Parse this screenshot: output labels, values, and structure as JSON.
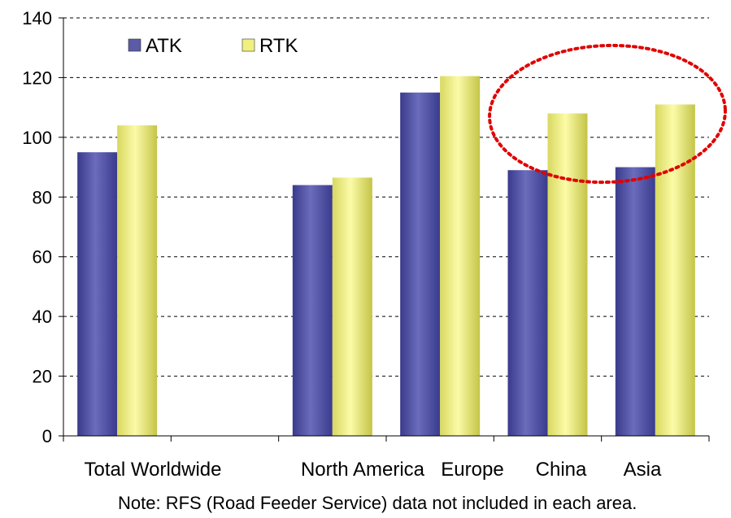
{
  "chart_data": {
    "type": "bar",
    "categories": [
      "Total Worldwide",
      "",
      "North America",
      "Europe",
      "China",
      "Asia"
    ],
    "series": [
      {
        "name": "ATK",
        "values": [
          95,
          null,
          84,
          115,
          89,
          90
        ]
      },
      {
        "name": "RTK",
        "values": [
          104,
          null,
          86.5,
          120.5,
          108,
          111
        ]
      }
    ],
    "ylim": [
      0,
      140
    ],
    "yticks": [
      0,
      20,
      40,
      60,
      80,
      100,
      120,
      140
    ],
    "grid": "horizontal-dashed",
    "legend_position": "top-left",
    "highlight": {
      "shape": "dashed-ellipse",
      "color": "#e00000",
      "categories": [
        "China",
        "Asia"
      ]
    }
  },
  "colors": {
    "ATK": "#5b5ba8",
    "RTK": "#f0f080",
    "highlight": "#e00000"
  },
  "note": "Note: RFS (Road Feeder Service) data not included in each area."
}
